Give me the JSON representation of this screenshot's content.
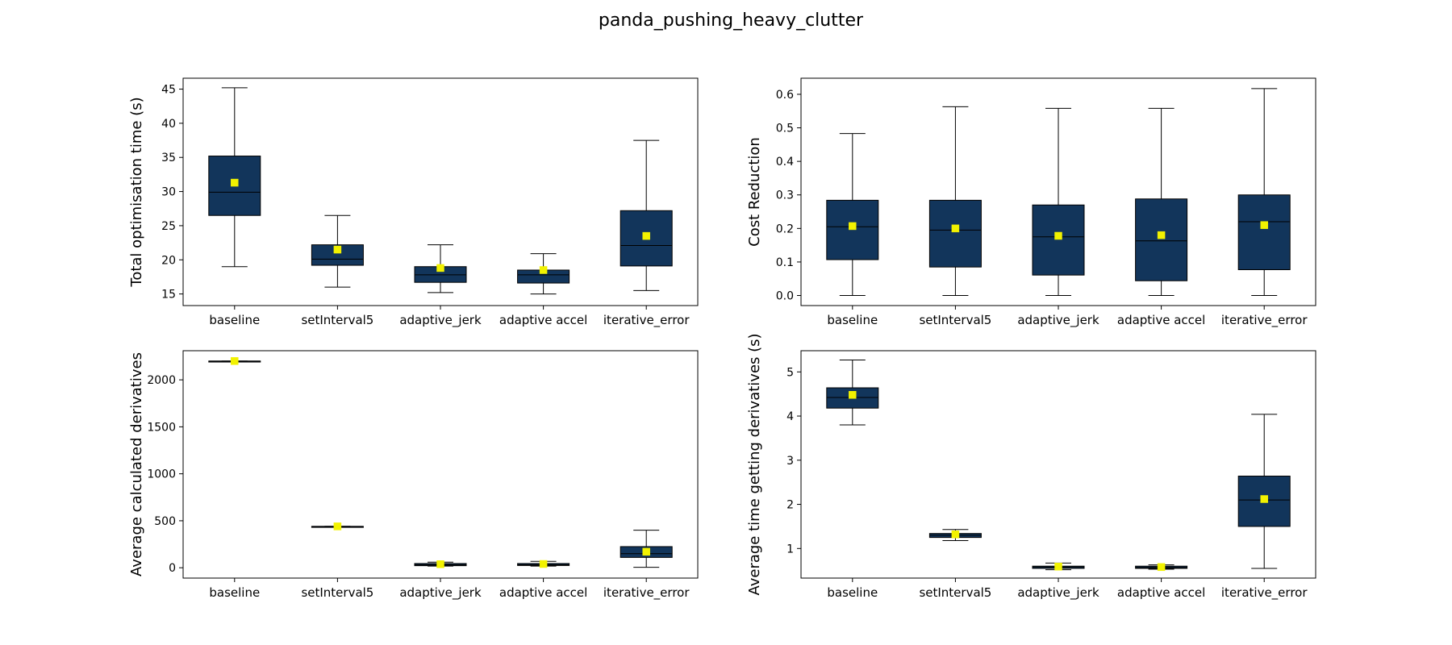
{
  "figure_title": "panda_pushing_heavy_clutter",
  "colors": {
    "box_fill": "#12355b",
    "box_edge": "#000000",
    "median": "#000000",
    "mean_marker": "#f2f200"
  },
  "chart_data": [
    {
      "type": "box",
      "position": "top-left",
      "ylabel": "Total optimisation time (s)",
      "categories": [
        "baseline",
        "setInterval5",
        "adaptive_jerk",
        "adaptive accel",
        "iterative_error"
      ],
      "ylim": [
        13.3,
        46.6
      ],
      "yticks": [
        15,
        20,
        25,
        30,
        35,
        40,
        45
      ],
      "boxes": [
        {
          "whislo": 19.0,
          "q1": 26.5,
          "med": 29.9,
          "q3": 35.2,
          "whishi": 45.2,
          "mean": 31.3
        },
        {
          "whislo": 16.0,
          "q1": 19.2,
          "med": 20.1,
          "q3": 22.2,
          "whishi": 26.5,
          "mean": 21.5
        },
        {
          "whislo": 15.2,
          "q1": 16.7,
          "med": 17.8,
          "q3": 19.0,
          "whishi": 22.2,
          "mean": 18.8
        },
        {
          "whislo": 15.0,
          "q1": 16.6,
          "med": 17.8,
          "q3": 18.5,
          "whishi": 20.9,
          "mean": 18.5
        },
        {
          "whislo": 15.5,
          "q1": 19.1,
          "med": 22.1,
          "q3": 27.2,
          "whishi": 37.5,
          "mean": 23.5
        }
      ]
    },
    {
      "type": "box",
      "position": "top-right",
      "ylabel": "Cost Reduction",
      "categories": [
        "baseline",
        "setInterval5",
        "adaptive_jerk",
        "adaptive accel",
        "iterative_error"
      ],
      "ylim": [
        -0.03,
        0.648
      ],
      "yticks": [
        0.0,
        0.1,
        0.2,
        0.3,
        0.4,
        0.5,
        0.6
      ],
      "ytick_labels": [
        "0.0",
        "0.1",
        "0.2",
        "0.3",
        "0.4",
        "0.5",
        "0.6"
      ],
      "boxes": [
        {
          "whislo": 0.0,
          "q1": 0.107,
          "med": 0.205,
          "q3": 0.284,
          "whishi": 0.483,
          "mean": 0.207
        },
        {
          "whislo": 0.0,
          "q1": 0.085,
          "med": 0.195,
          "q3": 0.284,
          "whishi": 0.563,
          "mean": 0.2
        },
        {
          "whislo": 0.0,
          "q1": 0.061,
          "med": 0.175,
          "q3": 0.27,
          "whishi": 0.558,
          "mean": 0.178
        },
        {
          "whislo": 0.0,
          "q1": 0.044,
          "med": 0.163,
          "q3": 0.288,
          "whishi": 0.558,
          "mean": 0.18
        },
        {
          "whislo": 0.0,
          "q1": 0.077,
          "med": 0.22,
          "q3": 0.3,
          "whishi": 0.617,
          "mean": 0.21
        }
      ]
    },
    {
      "type": "box",
      "position": "bottom-left",
      "ylabel": "Average calculated derivatives",
      "categories": [
        "baseline",
        "setInterval5",
        "adaptive_jerk",
        "adaptive accel",
        "iterative_error"
      ],
      "ylim": [
        -110,
        2310
      ],
      "yticks": [
        0,
        500,
        1000,
        1500,
        2000
      ],
      "boxes": [
        {
          "whislo": 2200,
          "q1": 2200,
          "med": 2200,
          "q3": 2200,
          "whishi": 2200,
          "mean": 2200
        },
        {
          "whislo": 440,
          "q1": 440,
          "med": 440,
          "q3": 440,
          "whishi": 440,
          "mean": 440
        },
        {
          "whislo": 18,
          "q1": 22,
          "med": 32,
          "q3": 45,
          "whishi": 60,
          "mean": 38
        },
        {
          "whislo": 18,
          "q1": 24,
          "med": 32,
          "q3": 45,
          "whishi": 68,
          "mean": 40
        },
        {
          "whislo": 5,
          "q1": 110,
          "med": 150,
          "q3": 225,
          "whishi": 400,
          "mean": 170
        }
      ]
    },
    {
      "type": "box",
      "position": "bottom-right",
      "ylabel": "Average time getting derivatives (s)",
      "categories": [
        "baseline",
        "setInterval5",
        "adaptive_jerk",
        "adaptive accel",
        "iterative_error"
      ],
      "ylim": [
        0.33,
        5.48
      ],
      "yticks": [
        1,
        2,
        3,
        4,
        5
      ],
      "boxes": [
        {
          "whislo": 3.8,
          "q1": 4.18,
          "med": 4.42,
          "q3": 4.64,
          "whishi": 5.27,
          "mean": 4.48
        },
        {
          "whislo": 1.18,
          "q1": 1.25,
          "med": 1.3,
          "q3": 1.34,
          "whishi": 1.43,
          "mean": 1.32
        },
        {
          "whislo": 0.52,
          "q1": 0.55,
          "med": 0.58,
          "q3": 0.6,
          "whishi": 0.67,
          "mean": 0.59
        },
        {
          "whislo": 0.53,
          "q1": 0.55,
          "med": 0.57,
          "q3": 0.6,
          "whishi": 0.63,
          "mean": 0.58
        },
        {
          "whislo": 0.55,
          "q1": 1.5,
          "med": 2.1,
          "q3": 2.64,
          "whishi": 4.04,
          "mean": 2.12
        }
      ]
    }
  ]
}
